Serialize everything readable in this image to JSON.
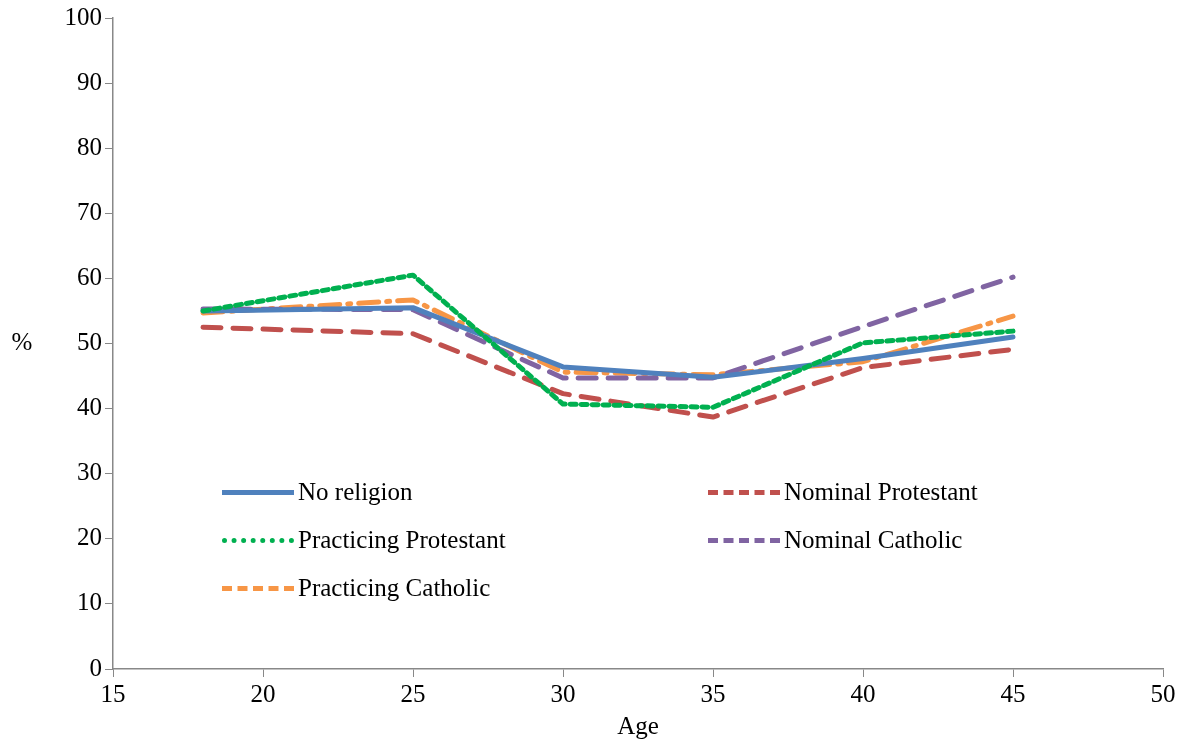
{
  "chart_data": {
    "type": "line",
    "xlabel": "Age",
    "ylabel": "%",
    "x": [
      18,
      25,
      30,
      35,
      40,
      45
    ],
    "xlim": [
      15,
      50
    ],
    "xticks": [
      15,
      20,
      25,
      30,
      35,
      40,
      45,
      50
    ],
    "ylim": [
      0,
      100
    ],
    "yticks": [
      0,
      10,
      20,
      30,
      40,
      50,
      60,
      70,
      80,
      90,
      100
    ],
    "grid": false,
    "legend": "bottom left",
    "marker": "none",
    "series": [
      {
        "name": "No religion",
        "color": "#4f81bd",
        "line_style": "solid",
        "values": [
          55,
          55.5,
          46.4,
          44.8,
          47.7,
          51
        ]
      },
      {
        "name": "Nominal Protestant",
        "color": "#c0504d",
        "line_style": "dashed",
        "values": [
          52.5,
          51.5,
          42.3,
          38.7,
          46.3,
          49.1
        ]
      },
      {
        "name": "Practicing Protestant",
        "color": "#00b050",
        "line_style": "dotted",
        "values": [
          55,
          60.5,
          40.7,
          40.2,
          50.1,
          51.9
        ]
      },
      {
        "name": "Nominal Catholic",
        "color": "#8064a2",
        "line_style": "dashed",
        "values": [
          55.3,
          55.2,
          44.7,
          44.7,
          52.6,
          60.2
        ]
      },
      {
        "name": "Practicing Catholic",
        "color": "#f79646",
        "line_style": "dashdot",
        "values": [
          54.7,
          56.7,
          45.6,
          45.2,
          47.2,
          54.2
        ]
      }
    ]
  }
}
